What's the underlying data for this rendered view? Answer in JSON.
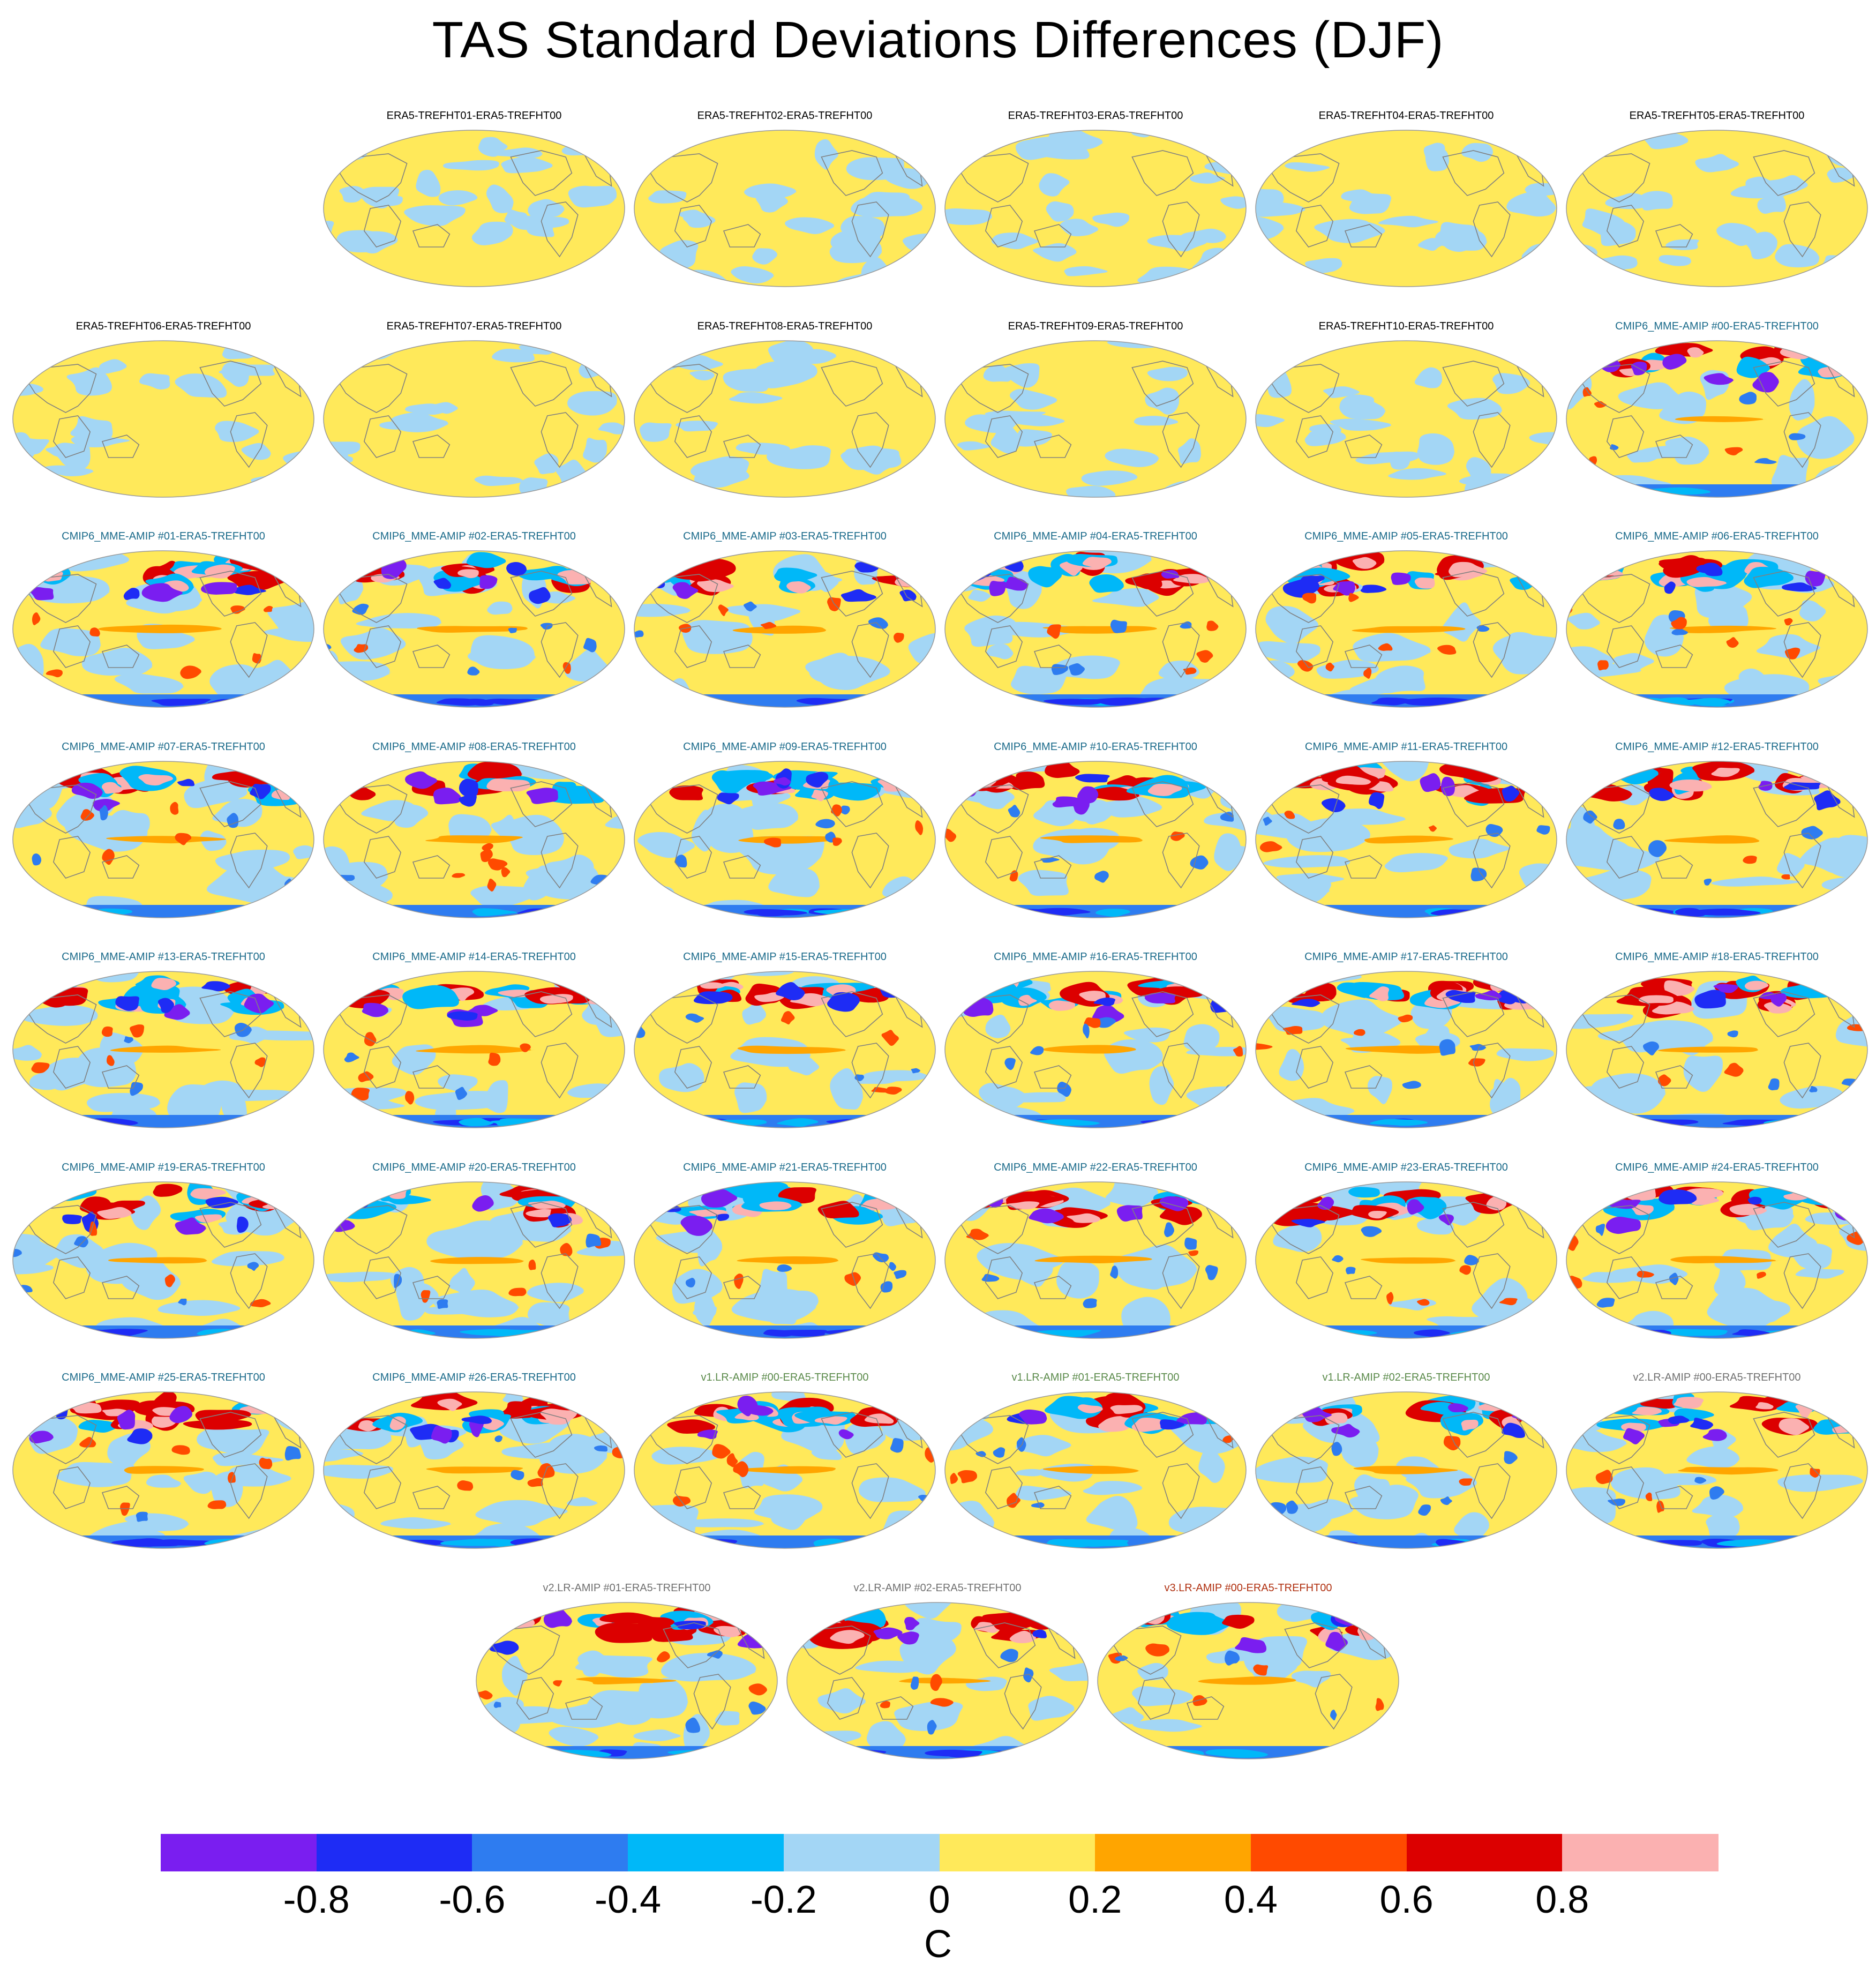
{
  "title": "TAS Standard Deviations Differences (DJF)",
  "colorbar": {
    "colors": [
      "#7a1ef0",
      "#1e2cf5",
      "#2e7cf0",
      "#00b8f8",
      "#a3d6f5",
      "#ffe95a",
      "#ffa500",
      "#ff4a00",
      "#dc0000",
      "#fbb1b1"
    ],
    "tick_labels": [
      "-0.8",
      "-0.6",
      "-0.4",
      "-0.2",
      "0",
      "0.2",
      "0.4",
      "0.6",
      "0.8"
    ],
    "units": "C"
  },
  "panels": [
    {
      "label": "ERA5-TREFHT01-ERA5-TREFHT00",
      "title_color": "#000000",
      "style": "era"
    },
    {
      "label": "ERA5-TREFHT02-ERA5-TREFHT00",
      "title_color": "#000000",
      "style": "era"
    },
    {
      "label": "ERA5-TREFHT03-ERA5-TREFHT00",
      "title_color": "#000000",
      "style": "era"
    },
    {
      "label": "ERA5-TREFHT04-ERA5-TREFHT00",
      "title_color": "#000000",
      "style": "era"
    },
    {
      "label": "ERA5-TREFHT05-ERA5-TREFHT00",
      "title_color": "#000000",
      "style": "era"
    },
    {
      "label": "ERA5-TREFHT06-ERA5-TREFHT00",
      "title_color": "#000000",
      "style": "era"
    },
    {
      "label": "ERA5-TREFHT07-ERA5-TREFHT00",
      "title_color": "#000000",
      "style": "era"
    },
    {
      "label": "ERA5-TREFHT08-ERA5-TREFHT00",
      "title_color": "#000000",
      "style": "era"
    },
    {
      "label": "ERA5-TREFHT09-ERA5-TREFHT00",
      "title_color": "#000000",
      "style": "era"
    },
    {
      "label": "ERA5-TREFHT10-ERA5-TREFHT00",
      "title_color": "#000000",
      "style": "era"
    },
    {
      "label": "CMIP6_MME-AMIP  #00-ERA5-TREFHT00",
      "title_color": "#1a6a8a",
      "style": "model"
    },
    {
      "label": "CMIP6_MME-AMIP  #01-ERA5-TREFHT00",
      "title_color": "#1a6a8a",
      "style": "model"
    },
    {
      "label": "CMIP6_MME-AMIP  #02-ERA5-TREFHT00",
      "title_color": "#1a6a8a",
      "style": "model"
    },
    {
      "label": "CMIP6_MME-AMIP  #03-ERA5-TREFHT00",
      "title_color": "#1a6a8a",
      "style": "model"
    },
    {
      "label": "CMIP6_MME-AMIP  #04-ERA5-TREFHT00",
      "title_color": "#1a6a8a",
      "style": "model"
    },
    {
      "label": "CMIP6_MME-AMIP  #05-ERA5-TREFHT00",
      "title_color": "#1a6a8a",
      "style": "model"
    },
    {
      "label": "CMIP6_MME-AMIP  #06-ERA5-TREFHT00",
      "title_color": "#1a6a8a",
      "style": "model"
    },
    {
      "label": "CMIP6_MME-AMIP  #07-ERA5-TREFHT00",
      "title_color": "#1a6a8a",
      "style": "model"
    },
    {
      "label": "CMIP6_MME-AMIP  #08-ERA5-TREFHT00",
      "title_color": "#1a6a8a",
      "style": "model"
    },
    {
      "label": "CMIP6_MME-AMIP  #09-ERA5-TREFHT00",
      "title_color": "#1a6a8a",
      "style": "model"
    },
    {
      "label": "CMIP6_MME-AMIP  #10-ERA5-TREFHT00",
      "title_color": "#1a6a8a",
      "style": "model"
    },
    {
      "label": "CMIP6_MME-AMIP  #11-ERA5-TREFHT00",
      "title_color": "#1a6a8a",
      "style": "model"
    },
    {
      "label": "CMIP6_MME-AMIP  #12-ERA5-TREFHT00",
      "title_color": "#1a6a8a",
      "style": "model"
    },
    {
      "label": "CMIP6_MME-AMIP  #13-ERA5-TREFHT00",
      "title_color": "#1a6a8a",
      "style": "model"
    },
    {
      "label": "CMIP6_MME-AMIP  #14-ERA5-TREFHT00",
      "title_color": "#1a6a8a",
      "style": "model"
    },
    {
      "label": "CMIP6_MME-AMIP  #15-ERA5-TREFHT00",
      "title_color": "#1a6a8a",
      "style": "model"
    },
    {
      "label": "CMIP6_MME-AMIP  #16-ERA5-TREFHT00",
      "title_color": "#1a6a8a",
      "style": "model"
    },
    {
      "label": "CMIP6_MME-AMIP  #17-ERA5-TREFHT00",
      "title_color": "#1a6a8a",
      "style": "model"
    },
    {
      "label": "CMIP6_MME-AMIP  #18-ERA5-TREFHT00",
      "title_color": "#1a6a8a",
      "style": "model"
    },
    {
      "label": "CMIP6_MME-AMIP  #19-ERA5-TREFHT00",
      "title_color": "#1a6a8a",
      "style": "model"
    },
    {
      "label": "CMIP6_MME-AMIP  #20-ERA5-TREFHT00",
      "title_color": "#1a6a8a",
      "style": "model"
    },
    {
      "label": "CMIP6_MME-AMIP  #21-ERA5-TREFHT00",
      "title_color": "#1a6a8a",
      "style": "model"
    },
    {
      "label": "CMIP6_MME-AMIP  #22-ERA5-TREFHT00",
      "title_color": "#1a6a8a",
      "style": "model"
    },
    {
      "label": "CMIP6_MME-AMIP  #23-ERA5-TREFHT00",
      "title_color": "#1a6a8a",
      "style": "model"
    },
    {
      "label": "CMIP6_MME-AMIP  #24-ERA5-TREFHT00",
      "title_color": "#1a6a8a",
      "style": "model"
    },
    {
      "label": "CMIP6_MME-AMIP  #25-ERA5-TREFHT00",
      "title_color": "#1a6a8a",
      "style": "model"
    },
    {
      "label": "CMIP6_MME-AMIP  #26-ERA5-TREFHT00",
      "title_color": "#1a6a8a",
      "style": "model"
    },
    {
      "label": "v1.LR-AMIP  #00-ERA5-TREFHT00",
      "title_color": "#5a8a4a",
      "style": "model"
    },
    {
      "label": "v1.LR-AMIP  #01-ERA5-TREFHT00",
      "title_color": "#5a8a4a",
      "style": "model"
    },
    {
      "label": "v1.LR-AMIP  #02-ERA5-TREFHT00",
      "title_color": "#5a8a4a",
      "style": "model"
    },
    {
      "label": "v2.LR-AMIP  #00-ERA5-TREFHT00",
      "title_color": "#707070",
      "style": "model"
    },
    {
      "label": "v2.LR-AMIP  #01-ERA5-TREFHT00",
      "title_color": "#707070",
      "style": "model"
    },
    {
      "label": "v2.LR-AMIP  #02-ERA5-TREFHT00",
      "title_color": "#707070",
      "style": "model"
    },
    {
      "label": "v3.LR-AMIP  #00-ERA5-TREFHT00",
      "title_color": "#b03010",
      "style": "model"
    }
  ]
}
